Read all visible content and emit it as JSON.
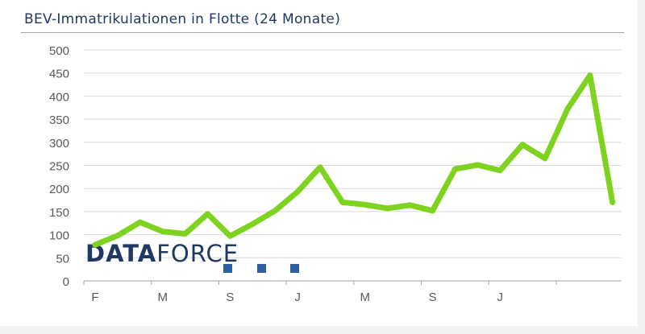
{
  "title": "BEV-Immatrikulationen in Flotte (24 Monate)",
  "logo": {
    "part1": "DATA",
    "part2": "FORCE",
    "color_dark": "#1f3864",
    "color_accent": "#2e5fa3"
  },
  "colors": {
    "line": "#7ed321",
    "grid": "#d9d9d9",
    "text": "#595959",
    "title": "#1f3864"
  },
  "chart_data": {
    "type": "line",
    "title": "BEV-Immatrikulationen in Flotte (24 Monate)",
    "xlabel": "",
    "ylabel": "",
    "ylim": [
      0,
      500
    ],
    "yticks": [
      0,
      50,
      100,
      150,
      200,
      250,
      300,
      350,
      400,
      450,
      500
    ],
    "x_tick_labels": [
      {
        "index": 0,
        "label": "F"
      },
      {
        "index": 3,
        "label": "M"
      },
      {
        "index": 6,
        "label": "S"
      },
      {
        "index": 9,
        "label": "J"
      },
      {
        "index": 12,
        "label": "M"
      },
      {
        "index": 15,
        "label": "S"
      },
      {
        "index": 18,
        "label": "J"
      }
    ],
    "grid": true,
    "series": [
      {
        "values": [
          78,
          98,
          127,
          107,
          102,
          145,
          97,
          123,
          152,
          193,
          246,
          170,
          165,
          157,
          164,
          152,
          242,
          251,
          239,
          295,
          265,
          372,
          445,
          170
        ]
      }
    ]
  }
}
